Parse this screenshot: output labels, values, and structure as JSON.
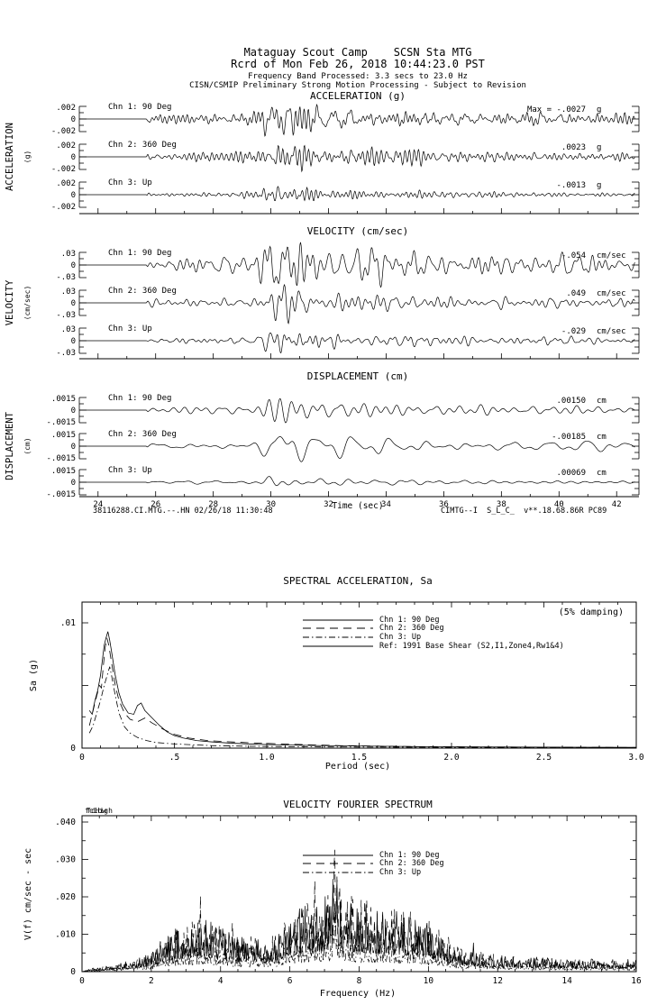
{
  "header": {
    "line1": "Mataguay Scout Camp    SCSN Sta MTG",
    "line2": "Rcrd of Mon Feb 26, 2018 10:44:23.0 PST",
    "line3": "Frequency Band Processed: 3.3 secs to 23.0 Hz",
    "line4": "CISN/CSMIP Preliminary Strong Motion Processing - Subject to Revision"
  },
  "footer": {
    "left": "38116288.CI.MTG.--.HN 02/26/18 11:30:48",
    "right": "CIMTG--I  S_L_C_  v**.18.68.86R PC89"
  },
  "trace_envelope": [
    [
      23.35,
      0
    ],
    [
      25.68,
      0
    ],
    [
      25.72,
      0.16
    ],
    [
      27.0,
      0.2
    ],
    [
      28.5,
      0.22
    ],
    [
      29.35,
      0.26
    ],
    [
      29.65,
      0.45
    ],
    [
      29.95,
      0.8
    ],
    [
      30.2,
      1.0
    ],
    [
      30.7,
      0.78
    ],
    [
      31.3,
      0.58
    ],
    [
      32.2,
      0.48
    ],
    [
      33.5,
      0.4
    ],
    [
      35.0,
      0.33
    ],
    [
      37.0,
      0.28
    ],
    [
      39.0,
      0.25
    ],
    [
      41.0,
      0.23
    ],
    [
      42.65,
      0.22
    ]
  ],
  "chart_data": [
    {
      "type": "line",
      "id": "acceleration",
      "title": "ACCELERATION (g)",
      "side_label": "ACCELERATION",
      "side_sublabel": "(g)",
      "full_scale": 0.002,
      "ytick_labels": [
        ".002",
        "0",
        "-.002"
      ],
      "x_range": [
        23.35,
        42.65
      ],
      "channels": [
        {
          "label": "Chn 1: 90 Deg",
          "max_value": -0.0027,
          "max_text": "Max =  -.0027",
          "unit": "g"
        },
        {
          "label": "Chn 2: 360 Deg",
          "max_value": 0.0023,
          "max_text": ".0023",
          "unit": "g"
        },
        {
          "label": "Chn 3: Up",
          "max_value": -0.0013,
          "max_text": "-.0013",
          "unit": "g"
        }
      ]
    },
    {
      "type": "line",
      "id": "velocity",
      "title": "VELOCITY (cm/sec)",
      "side_label": "VELOCITY",
      "side_sublabel": "(cm/sec)",
      "full_scale": 0.03,
      "ytick_labels": [
        ".03",
        "0",
        "-.03"
      ],
      "x_range": [
        23.35,
        42.65
      ],
      "channels": [
        {
          "label": "Chn 1: 90 Deg",
          "max_value": -0.054,
          "max_text": "-.054",
          "unit": "cm/sec"
        },
        {
          "label": "Chn 2: 360 Deg",
          "max_value": 0.049,
          "max_text": ".049",
          "unit": "cm/sec"
        },
        {
          "label": "Chn 3: Up",
          "max_value": -0.029,
          "max_text": "-.029",
          "unit": "cm/sec"
        }
      ]
    },
    {
      "type": "line",
      "id": "displacement",
      "title": "DISPLACEMENT (cm)",
      "side_label": "DISPLACEMENT",
      "side_sublabel": "(cm)",
      "full_scale": 0.0015,
      "ytick_labels": [
        ".0015",
        "0",
        "-.0015"
      ],
      "x_range": [
        23.35,
        42.65
      ],
      "xlabel": "Time (sec)",
      "xticks": [
        24,
        26,
        28,
        30,
        32,
        34,
        36,
        38,
        40,
        42
      ],
      "channels": [
        {
          "label": "Chn 1: 90 Deg",
          "max_value": 0.0015,
          "max_text": ".00150",
          "unit": "cm"
        },
        {
          "label": "Chn 2: 360 Deg",
          "max_value": -0.00185,
          "max_text": "-.00185",
          "unit": "cm"
        },
        {
          "label": "Chn 3: Up",
          "max_value": 0.00069,
          "max_text": ".00069",
          "unit": "cm"
        }
      ]
    },
    {
      "type": "line",
      "id": "spectral-acceleration",
      "title": "SPECTRAL ACCELERATION, Sa",
      "damping_note": "(5% damping)",
      "xlabel": "Period (sec)",
      "ylabel": "Sa (g)",
      "xlim": [
        0,
        3
      ],
      "ylim": [
        0,
        0.01
      ],
      "xtick_values": [
        0,
        0.5,
        1.0,
        1.5,
        2.0,
        2.5,
        3.0
      ],
      "xtick_labels": [
        "0",
        ".5",
        "1.0",
        "1.5",
        "2.0",
        "2.5",
        "3.0"
      ],
      "ytick_values": [
        0.01,
        0
      ],
      "ytick_labels": [
        ".01",
        "0"
      ],
      "series": [
        {
          "name": "Chn 1: 90 Deg",
          "style": "solid",
          "points": [
            [
              0.04,
              0.003
            ],
            [
              0.055,
              0.0027
            ],
            [
              0.07,
              0.0038
            ],
            [
              0.085,
              0.0046
            ],
            [
              0.1,
              0.0058
            ],
            [
              0.11,
              0.007
            ],
            [
              0.12,
              0.0082
            ],
            [
              0.13,
              0.0088
            ],
            [
              0.14,
              0.0093
            ],
            [
              0.15,
              0.0086
            ],
            [
              0.16,
              0.0077
            ],
            [
              0.18,
              0.0058
            ],
            [
              0.2,
              0.0044
            ],
            [
              0.22,
              0.0035
            ],
            [
              0.25,
              0.0028
            ],
            [
              0.28,
              0.0027
            ],
            [
              0.3,
              0.0034
            ],
            [
              0.32,
              0.0036
            ],
            [
              0.34,
              0.003
            ],
            [
              0.38,
              0.0024
            ],
            [
              0.42,
              0.0018
            ],
            [
              0.46,
              0.0013
            ],
            [
              0.5,
              0.001
            ],
            [
              0.55,
              0.0008
            ],
            [
              0.62,
              0.0006
            ],
            [
              0.7,
              0.0005
            ],
            [
              0.8,
              0.0004
            ],
            [
              0.95,
              0.0003
            ],
            [
              1.1,
              0.00025
            ],
            [
              1.3,
              0.0002
            ],
            [
              1.6,
              0.00015
            ],
            [
              2.0,
              0.0001
            ],
            [
              2.5,
              8e-05
            ],
            [
              3.0,
              6e-05
            ]
          ]
        },
        {
          "name": "Chn 2: 360 Deg",
          "style": "longdash",
          "points": [
            [
              0.04,
              0.0018
            ],
            [
              0.06,
              0.003
            ],
            [
              0.08,
              0.0042
            ],
            [
              0.095,
              0.005
            ],
            [
              0.105,
              0.0048
            ],
            [
              0.115,
              0.0065
            ],
            [
              0.125,
              0.008
            ],
            [
              0.135,
              0.0088
            ],
            [
              0.145,
              0.0082
            ],
            [
              0.16,
              0.0068
            ],
            [
              0.18,
              0.005
            ],
            [
              0.2,
              0.0038
            ],
            [
              0.23,
              0.0028
            ],
            [
              0.26,
              0.0023
            ],
            [
              0.3,
              0.0021
            ],
            [
              0.34,
              0.0024
            ],
            [
              0.38,
              0.002
            ],
            [
              0.44,
              0.0015
            ],
            [
              0.5,
              0.0011
            ],
            [
              0.58,
              0.0008
            ],
            [
              0.68,
              0.0006
            ],
            [
              0.8,
              0.0005
            ],
            [
              0.95,
              0.0004
            ],
            [
              1.15,
              0.0003
            ],
            [
              1.4,
              0.0002
            ],
            [
              1.8,
              0.00012
            ],
            [
              2.2,
              9e-05
            ],
            [
              2.6,
              7e-05
            ],
            [
              3.0,
              5e-05
            ]
          ]
        },
        {
          "name": "Chn 3: Up",
          "style": "dashdot",
          "points": [
            [
              0.04,
              0.0012
            ],
            [
              0.06,
              0.0018
            ],
            [
              0.08,
              0.0028
            ],
            [
              0.1,
              0.0038
            ],
            [
              0.12,
              0.005
            ],
            [
              0.14,
              0.006
            ],
            [
              0.15,
              0.0065
            ],
            [
              0.16,
              0.0058
            ],
            [
              0.18,
              0.0042
            ],
            [
              0.2,
              0.0028
            ],
            [
              0.23,
              0.0017
            ],
            [
              0.26,
              0.0012
            ],
            [
              0.3,
              0.00085
            ],
            [
              0.35,
              0.0006
            ],
            [
              0.4,
              0.00045
            ],
            [
              0.48,
              0.00035
            ],
            [
              0.58,
              0.00028
            ],
            [
              0.7,
              0.0002
            ],
            [
              0.9,
              0.00015
            ],
            [
              1.2,
              0.0001
            ],
            [
              1.6,
              8e-05
            ],
            [
              2.2,
              6e-05
            ],
            [
              3.0,
              4e-05
            ]
          ]
        },
        {
          "name": "Ref: 1991 Base Shear (S2,I1,Zone4,Rw1&4)",
          "style": "solid",
          "off_scale": true,
          "points": []
        }
      ]
    },
    {
      "type": "line",
      "id": "velocity-fourier-spectrum",
      "title": "VELOCITY FOURIER SPECTRUM",
      "xlabel": "Frequency (Hz)",
      "ylabel": "V(f)  cm/sec - sec",
      "xlim": [
        0,
        16
      ],
      "ylim": [
        0,
        0.04
      ],
      "xtick_values": [
        0,
        2,
        4,
        6,
        8,
        10,
        12,
        14,
        16
      ],
      "xtick_labels": [
        "0",
        "2",
        "4",
        "6",
        "8",
        "10",
        "12",
        "14",
        "16"
      ],
      "ytick_values": [
        0.04,
        0.03,
        0.02,
        0.01,
        0
      ],
      "ytick_labels": [
        ".040",
        ".030",
        ".020",
        ".010",
        "0"
      ],
      "annotations": [
        "fcLow",
        "fcHigh"
      ],
      "envelope": [
        [
          0,
          0
        ],
        [
          0.3,
          0.0008
        ],
        [
          0.8,
          0.0015
        ],
        [
          1.5,
          0.003
        ],
        [
          2.0,
          0.0045
        ],
        [
          2.4,
          0.009
        ],
        [
          2.8,
          0.011
        ],
        [
          3.2,
          0.012
        ],
        [
          3.6,
          0.013
        ],
        [
          4.0,
          0.011
        ],
        [
          4.4,
          0.009
        ],
        [
          4.8,
          0.0085
        ],
        [
          5.2,
          0.008
        ],
        [
          5.6,
          0.009
        ],
        [
          6.0,
          0.014
        ],
        [
          6.4,
          0.016
        ],
        [
          6.8,
          0.017
        ],
        [
          7.1,
          0.019
        ],
        [
          7.35,
          0.024
        ],
        [
          7.6,
          0.018
        ],
        [
          8.0,
          0.017
        ],
        [
          8.4,
          0.016
        ],
        [
          8.8,
          0.015
        ],
        [
          9.2,
          0.015
        ],
        [
          9.6,
          0.014
        ],
        [
          10.0,
          0.012
        ],
        [
          10.4,
          0.009
        ],
        [
          10.8,
          0.006
        ],
        [
          11.2,
          0.005
        ],
        [
          12.0,
          0.004
        ],
        [
          13.0,
          0.0035
        ],
        [
          14.0,
          0.003
        ],
        [
          15.0,
          0.003
        ],
        [
          16.0,
          0.0025
        ]
      ],
      "series": [
        {
          "name": "Chn 1: 90 Deg",
          "style": "solid",
          "scale": 1.0,
          "spike": 0.01
        },
        {
          "name": "Chn 2: 360 Deg",
          "style": "longdash",
          "scale": 1.05,
          "spike": 0.013
        },
        {
          "name": "Chn 3: Up",
          "style": "dashdot",
          "scale": 0.5,
          "spike": 0.003
        }
      ]
    }
  ]
}
